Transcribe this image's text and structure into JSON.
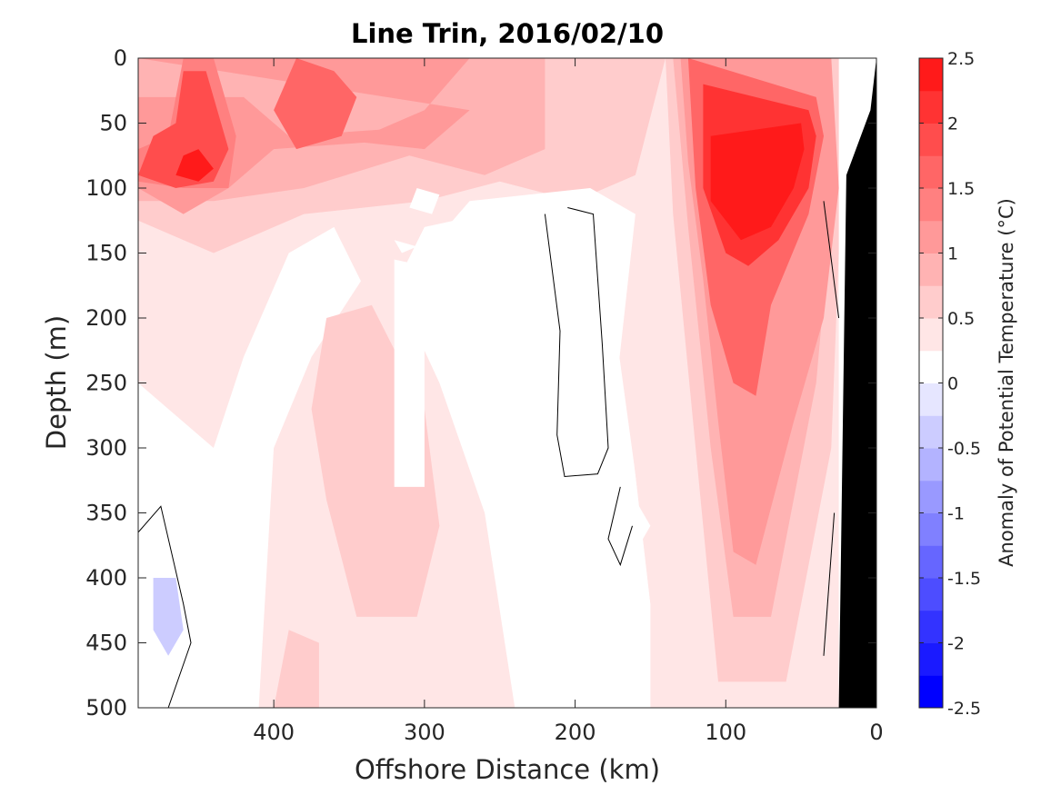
{
  "chart_data": {
    "type": "heatmap",
    "title": "Line Trin, 2016/02/10",
    "xlabel": "Offshore Distance (km)",
    "ylabel": "Depth (m)",
    "xlim": [
      490,
      0
    ],
    "ylim": [
      0,
      500
    ],
    "x_ticks": [
      "400",
      "300",
      "200",
      "100",
      "0"
    ],
    "x_tick_values": [
      400,
      300,
      200,
      100,
      0
    ],
    "y_ticks": [
      "0",
      "50",
      "100",
      "150",
      "200",
      "250",
      "300",
      "350",
      "400",
      "450",
      "500"
    ],
    "y_tick_values": [
      0,
      50,
      100,
      150,
      200,
      250,
      300,
      350,
      400,
      450,
      500
    ],
    "colorbar": {
      "label": "Anomaly of Potential Temperature (°C)",
      "range": [
        -2.5,
        2.5
      ],
      "tick_labels": [
        "2.5",
        "2",
        "1.5",
        "1",
        "0.5",
        "0",
        "-0.5",
        "-1",
        "-1.5",
        "-2",
        "-2.5"
      ],
      "tick_values": [
        2.5,
        2,
        1.5,
        1,
        0.5,
        0,
        -0.5,
        -1,
        -1.5,
        -2,
        -2.5
      ],
      "levels": [
        -2.5,
        -2.25,
        -2,
        -1.75,
        -1.5,
        -1.25,
        -1,
        -0.75,
        -0.5,
        -0.25,
        0,
        0.25,
        0.5,
        0.75,
        1,
        1.25,
        1.5,
        1.75,
        2,
        2.25,
        2.5
      ],
      "colors": [
        "#0000ff",
        "#1a1aff",
        "#3333ff",
        "#4d4dff",
        "#6666ff",
        "#8080ff",
        "#9999ff",
        "#b3b3ff",
        "#ccccff",
        "#e6e6ff",
        "#ffffff",
        "#ffe6e6",
        "#ffcccc",
        "#ffb3b3",
        "#ff9999",
        "#ff8080",
        "#ff6666",
        "#ff4d4d",
        "#ff3333",
        "#ff1a1a"
      ]
    },
    "grid": false,
    "zero_contour_color": "#000000",
    "topography_color": "#000000",
    "field_description": "approximate anomaly structure (°C) read from the filled contours",
    "features": [
      {
        "name": "upper-layer warm band",
        "x_range": [
          20,
          490
        ],
        "depth_range": [
          0,
          130
        ],
        "anomaly": 1.0
      },
      {
        "name": "warm core west",
        "x_center": 450,
        "depth_center": 85,
        "anomaly": 2.3
      },
      {
        "name": "warm core east",
        "x_center": 80,
        "depth_center": 100,
        "anomaly": 2.5
      },
      {
        "name": "warm tongue",
        "x_center": 90,
        "depth_range": [
          130,
          480
        ],
        "anomaly": 1.0
      },
      {
        "name": "warm column",
        "x_center": 330,
        "depth_range": [
          200,
          430
        ],
        "anomaly": 0.6
      },
      {
        "name": "cold patch",
        "x_center": 470,
        "depth_center": 430,
        "anomaly": -0.3
      }
    ]
  }
}
